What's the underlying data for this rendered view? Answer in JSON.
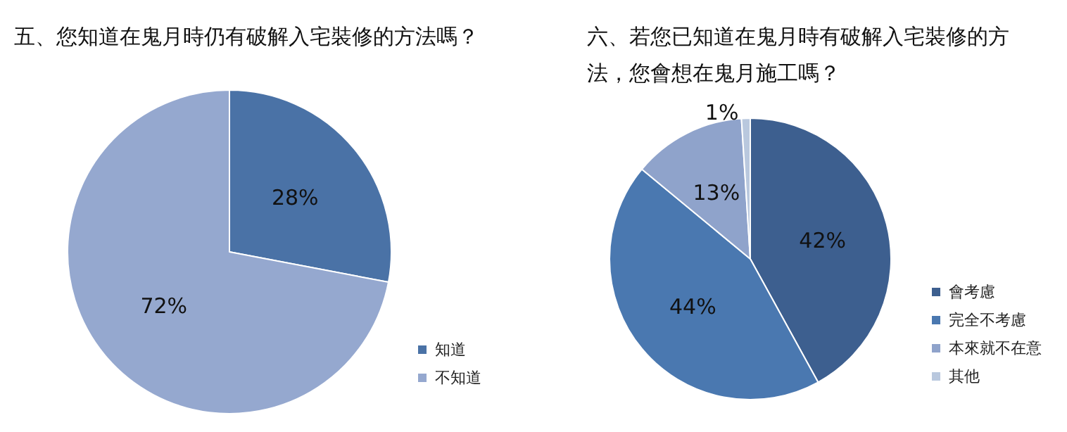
{
  "chart_data": [
    {
      "type": "pie",
      "title": "五、您知道在鬼月時仍有破解入宅裝修的方法嗎？",
      "categories": [
        "知道",
        "不知道"
      ],
      "values": [
        28,
        72
      ],
      "colors": [
        "#4a72a6",
        "#95a8cf"
      ],
      "value_labels": [
        "28%",
        "72%"
      ],
      "legend": "bottom right"
    },
    {
      "type": "pie",
      "title": "六、若您已知道在鬼月時有破解入宅裝修的方法，您會想在鬼月施工嗎？",
      "categories": [
        "會考慮",
        "完全不考慮",
        "本來就不在意",
        "其他"
      ],
      "values": [
        42,
        44,
        13,
        1
      ],
      "colors": [
        "#3d5f8f",
        "#4a78b0",
        "#8fa3cb",
        "#b9c8de"
      ],
      "value_labels": [
        "42%",
        "44%",
        "13%",
        "1%"
      ],
      "legend": "bottom right"
    }
  ]
}
